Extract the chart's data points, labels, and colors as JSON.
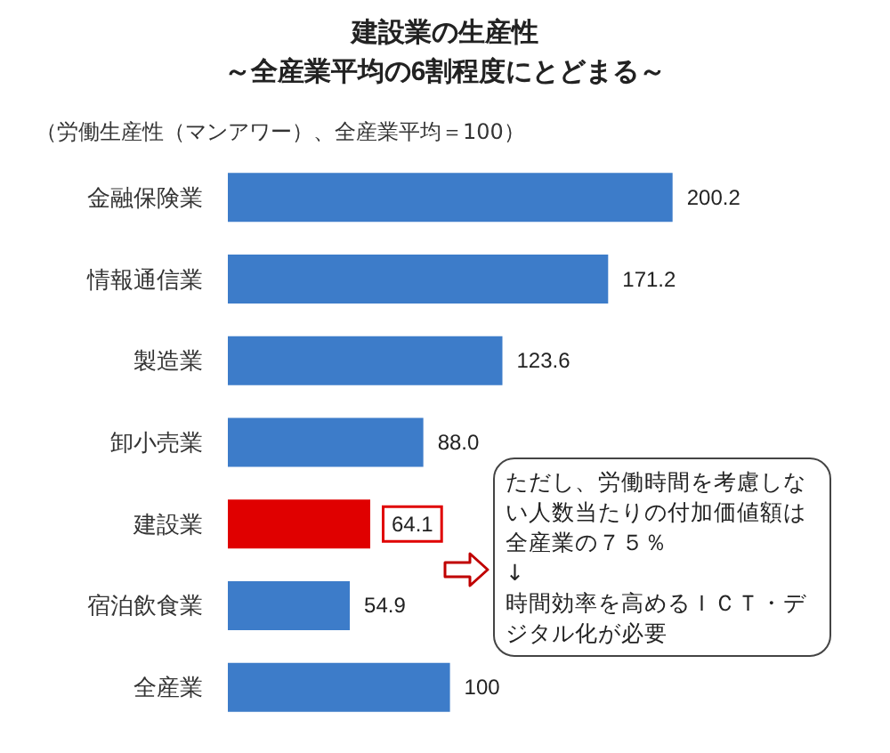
{
  "chart_data": {
    "type": "bar",
    "orientation": "horizontal",
    "title": "建設業の生産性",
    "subtitle": "～全産業平均の6割程度にとどまる～",
    "categories": [
      "金融保険業",
      "情報通信業",
      "製造業",
      "卸小売業",
      "建設業",
      "宿泊飲食業",
      "全産業"
    ],
    "values": [
      200.2,
      171.2,
      123.6,
      88.0,
      64.1,
      54.9,
      100
    ],
    "value_labels": [
      "200.2",
      "171.2",
      "123.6",
      "88.0",
      "64.1",
      "54.9",
      "100"
    ],
    "colors": [
      "#3d7cc9",
      "#3d7cc9",
      "#3d7cc9",
      "#3d7cc9",
      "#e00000",
      "#3d7cc9",
      "#3d7cc9"
    ],
    "tick_labels": "y",
    "annotations": [
      "（労働生産性（マンアワー）、全産業平均＝100）",
      "ただし、労働時間を考慮しない人数当たりの付加価値額は全産業の７５％\n↓\n時間効率を高めるＩＣＴ・デジタル化が必要"
    ]
  }
}
